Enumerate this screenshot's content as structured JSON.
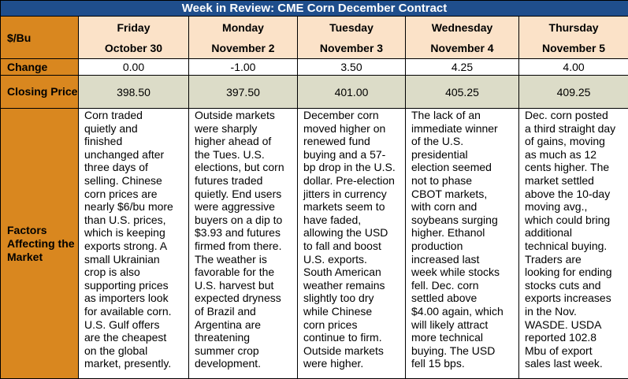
{
  "title": "Week in Review: CME Corn December Contract",
  "row_labels": {
    "unit": "$/Bu",
    "change": "Change",
    "closing": "Closing Price",
    "factors": "Factors Affecting the Market"
  },
  "days": [
    {
      "day": "Friday",
      "date": "October 30",
      "change": "0.00",
      "close": "398.50",
      "factors": "Corn traded\nquietly and\nfinished\nunchanged after\nthree days of\nselling. Chinese\ncorn prices are\nnearly $6/bu more\nthan U.S. prices,\nwhich is keeping\nexports strong. A\nsmall Ukrainian\ncrop is also\nsupporting prices\nas importers look\nfor available corn.\nU.S. Gulf offers\nare the cheapest\non the global\nmarket, presently."
    },
    {
      "day": "Monday",
      "date": "November 2",
      "change": "-1.00",
      "close": "397.50",
      "factors": "Outside markets\nwere sharply\nhigher ahead of\nthe Tues. U.S.\nelections, but corn\nfutures traded\nquietly. End users\nwere aggressive\nbuyers on a dip to\n$3.93 and futures\nfirmed from there.\nThe weather is\nfavorable for the\nU.S. harvest but\nexpected dryness\nof Brazil and\nArgentina are\nthreatening\nsummer crop\ndevelopment."
    },
    {
      "day": "Tuesday",
      "date": "November 3",
      "change": "3.50",
      "close": "401.00",
      "factors": "December corn\nmoved higher on\nrenewed fund\nbuying and a 57-\nbp drop in the U.S.\ndollar. Pre-election\njitters in currency\nmarkets seem to\nhave faded,\nallowing the USD\nto fall and boost\nU.S. exports.\nSouth American\nweather remains\nslightly too dry\nwhile Chinese\ncorn prices\ncontinue to firm.\nOutside markets\nwere higher."
    },
    {
      "day": "Wednesday",
      "date": "November 4",
      "change": "4.25",
      "close": "405.25",
      "factors": "The lack of an\nimmediate winner\nof the U.S.\npresidential\nelection seemed\nnot to phase\nCBOT markets,\nwith corn and\nsoybeans surging\nhigher. Ethanol\nproduction\nincreased last\nweek while stocks\nfell. Dec. corn\nsettled above\n$4.00 again, which\nwill likely attract\nmore technical\nbuying. The USD\nfell 15 bps."
    },
    {
      "day": "Thursday",
      "date": "November 5",
      "change": "4.00",
      "close": "409.25",
      "factors": "Dec. corn posted\na third straight day\nof gains, moving\nas much as 12\ncents higher. The\nmarket settled\nabove the 10-day\nmoving avg.,\nwhich could bring\nadditional\ntechnical buying.\nTraders are\nlooking for ending\nstocks cuts and\nexports increases\nin the Nov.\nWASDE. USDA\nreported 102.8\nMbu of export\nsales last week."
    }
  ],
  "colors": {
    "title_bg": "#1f4e8c",
    "label_bg": "#d9871f",
    "header_bg": "#fbe2c8",
    "closing_bg": "#dcdcc8"
  }
}
